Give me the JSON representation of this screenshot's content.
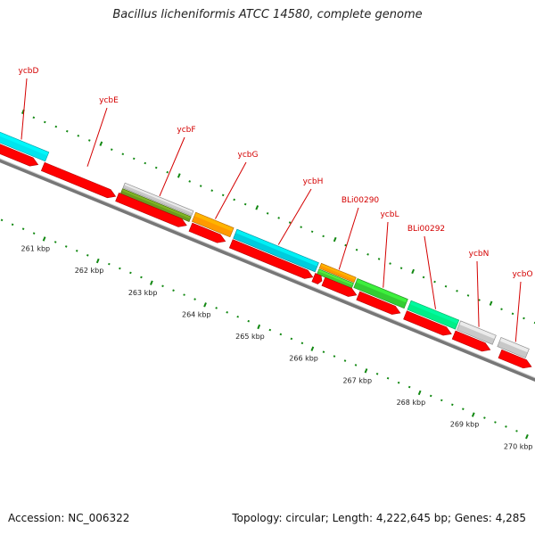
{
  "title": "Bacillus licheniformis ATCC 14580, complete genome",
  "footer": {
    "accession": "Accession: NC_006322",
    "topology": "Topology: circular; Length: 4,222,645 bp; Genes: 4,285"
  },
  "colors": {
    "cds": "#ff0000",
    "backbone": "#777777",
    "ticks": "#118811",
    "labels": "#d40000"
  },
  "kbp_ticks": [
    "261 kbp",
    "262 kbp",
    "263 kbp",
    "264 kbp",
    "265 kbp",
    "266 kbp",
    "267 kbp",
    "268 kbp",
    "269 kbp",
    "270 kbp"
  ],
  "genes": [
    {
      "name": "ycbD",
      "color": "#00e5ee"
    },
    {
      "name": "ycbE",
      "color": null
    },
    {
      "name": "ycbF",
      "color": "#c8c8c8",
      "color2": "#6b9a1f"
    },
    {
      "name": "ycbG",
      "color": "#ff9900"
    },
    {
      "name": "ycbH",
      "color": "#00ccdd"
    },
    {
      "name": "BLi00290",
      "color": "#ff9900",
      "color2": "#44cc33"
    },
    {
      "name": "ycbL",
      "color": "#33cc33"
    },
    {
      "name": "BLi00292",
      "color": "#00ee88"
    },
    {
      "name": "ycbN",
      "color": "#c8c8c8"
    },
    {
      "name": "ycbO",
      "color": "#c8c8c8"
    }
  ]
}
